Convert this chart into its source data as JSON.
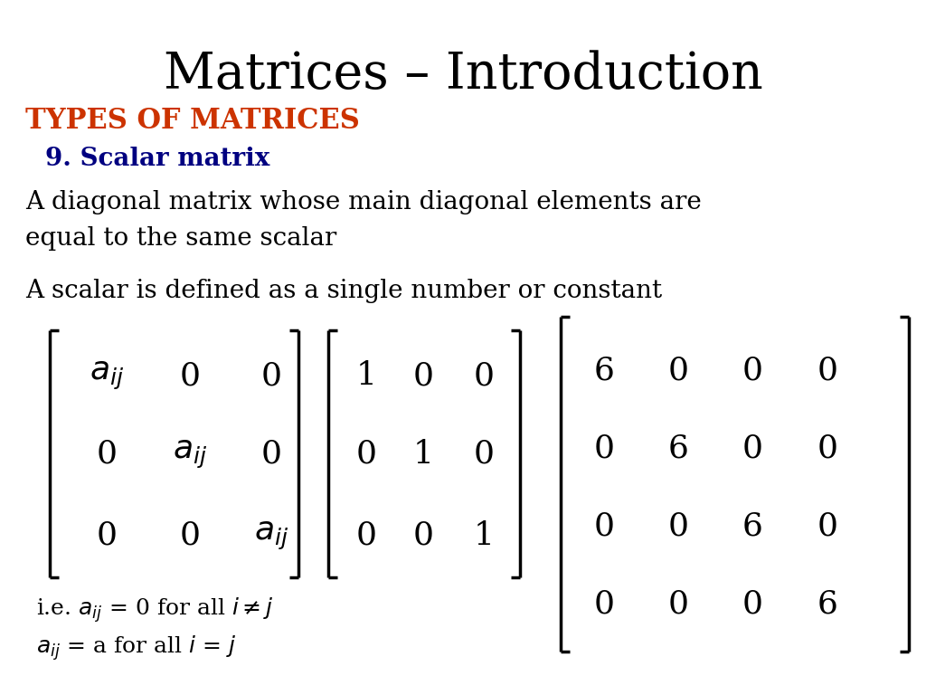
{
  "title": "Matrices – Introduction",
  "title_fontsize": 40,
  "title_color": "#000000",
  "section_label": "TYPES OF MATRICES",
  "section_color": "#CC3300",
  "section_fontsize": 22,
  "subsection_label": "9. Scalar matrix",
  "subsection_color": "#000080",
  "subsection_fontsize": 20,
  "desc1": "A diagonal matrix whose main diagonal elements are\nequal to the same scalar",
  "desc2": "A scalar is defined as a single number or constant",
  "desc_fontsize": 20,
  "footnote_fontsize": 18,
  "mat_fontsize": 26,
  "bg_color": "#ffffff",
  "m1_elements": [
    [
      "a_ij",
      "0",
      "0"
    ],
    [
      "0",
      "a_ij",
      "0"
    ],
    [
      "0",
      "0",
      "a_ij"
    ]
  ],
  "m2_elements": [
    [
      "1",
      "0",
      "0"
    ],
    [
      "0",
      "1",
      "0"
    ],
    [
      "0",
      "0",
      "1"
    ]
  ],
  "m3_elements": [
    [
      "6",
      "0",
      "0",
      "0"
    ],
    [
      "0",
      "6",
      "0",
      "0"
    ],
    [
      "0",
      "0",
      "6",
      "0"
    ],
    [
      "0",
      "0",
      "0",
      "6"
    ]
  ]
}
